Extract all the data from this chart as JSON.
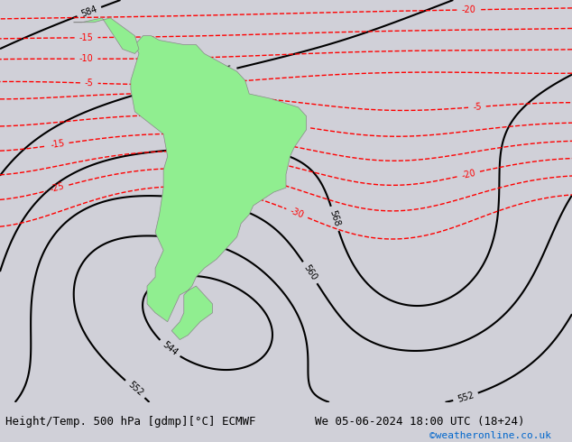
{
  "title_left": "Height/Temp. 500 hPa [gdmp][°C] ECMWF",
  "title_right": "We 05-06-2024 18:00 UTC (18+24)",
  "credit": "©weatheronline.co.uk",
  "background_color": "#d0d0d8",
  "land_color": "#90ee90",
  "border_color": "#888888",
  "fig_width": 6.34,
  "fig_height": 4.9,
  "dpi": 100
}
